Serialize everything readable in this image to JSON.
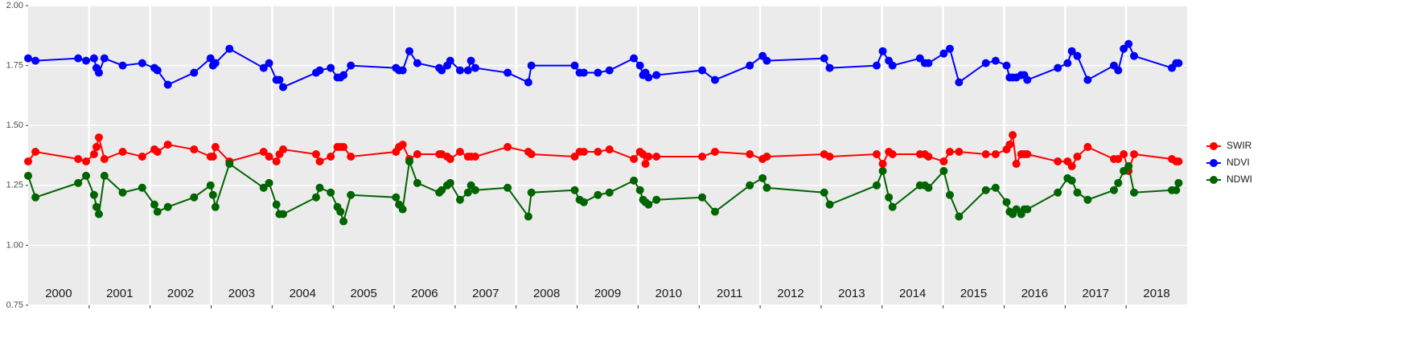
{
  "chart_data": {
    "type": "line",
    "x": [
      2000.0,
      2000.12,
      2000.82,
      2000.95,
      2001.08,
      2001.12,
      2001.16,
      2001.25,
      2001.55,
      2001.87,
      2002.07,
      2002.12,
      2002.29,
      2002.72,
      2002.99,
      2003.03,
      2003.07,
      2003.3,
      2003.86,
      2003.95,
      2004.07,
      2004.12,
      2004.18,
      2004.72,
      2004.78,
      2004.96,
      2005.07,
      2005.12,
      2005.17,
      2005.29,
      2006.03,
      2006.08,
      2006.14,
      2006.25,
      2006.38,
      2006.74,
      2006.78,
      2006.87,
      2006.92,
      2007.08,
      2007.21,
      2007.26,
      2007.33,
      2007.86,
      2008.2,
      2008.25,
      2008.96,
      2009.04,
      2009.11,
      2009.34,
      2009.53,
      2009.93,
      2010.03,
      2010.08,
      2010.12,
      2010.17,
      2010.3,
      2011.05,
      2011.26,
      2011.83,
      2012.04,
      2012.11,
      2013.05,
      2013.14,
      2013.91,
      2014.01,
      2014.11,
      2014.17,
      2014.62,
      2014.7,
      2014.76,
      2015.01,
      2015.11,
      2015.26,
      2015.7,
      2015.86,
      2016.04,
      2016.09,
      2016.14,
      2016.2,
      2016.28,
      2016.33,
      2016.38,
      2016.88,
      2017.04,
      2017.11,
      2017.2,
      2017.37,
      2017.8,
      2017.87,
      2017.96,
      2018.04,
      2018.13,
      2018.75,
      2018.82,
      2018.86
    ],
    "series": [
      {
        "name": "SWIR",
        "color": "#ff0000",
        "values": [
          1.35,
          1.39,
          1.36,
          1.35,
          1.38,
          1.41,
          1.45,
          1.36,
          1.39,
          1.37,
          1.4,
          1.39,
          1.42,
          1.4,
          1.37,
          1.37,
          1.41,
          1.35,
          1.39,
          1.37,
          1.35,
          1.38,
          1.4,
          1.38,
          1.35,
          1.37,
          1.41,
          1.41,
          1.41,
          1.37,
          1.39,
          1.41,
          1.42,
          1.36,
          1.38,
          1.38,
          1.38,
          1.37,
          1.36,
          1.39,
          1.37,
          1.37,
          1.37,
          1.41,
          1.39,
          1.38,
          1.37,
          1.39,
          1.39,
          1.39,
          1.4,
          1.36,
          1.39,
          1.38,
          1.34,
          1.37,
          1.37,
          1.37,
          1.39,
          1.38,
          1.36,
          1.37,
          1.38,
          1.37,
          1.38,
          1.34,
          1.39,
          1.38,
          1.38,
          1.38,
          1.37,
          1.35,
          1.39,
          1.39,
          1.38,
          1.38,
          1.4,
          1.42,
          1.46,
          1.34,
          1.38,
          1.38,
          1.38,
          1.35,
          1.35,
          1.33,
          1.37,
          1.41,
          1.36,
          1.36,
          1.38,
          1.31,
          1.38,
          1.36,
          1.35,
          1.35
        ]
      },
      {
        "name": "NDVI",
        "color": "#0000ff",
        "values": [
          1.78,
          1.77,
          1.78,
          1.77,
          1.78,
          1.74,
          1.72,
          1.78,
          1.75,
          1.76,
          1.74,
          1.73,
          1.67,
          1.72,
          1.78,
          1.75,
          1.76,
          1.82,
          1.74,
          1.76,
          1.69,
          1.69,
          1.66,
          1.72,
          1.73,
          1.74,
          1.7,
          1.7,
          1.71,
          1.75,
          1.74,
          1.73,
          1.73,
          1.81,
          1.76,
          1.74,
          1.73,
          1.75,
          1.77,
          1.73,
          1.73,
          1.77,
          1.74,
          1.72,
          1.68,
          1.75,
          1.75,
          1.72,
          1.72,
          1.72,
          1.73,
          1.78,
          1.75,
          1.71,
          1.72,
          1.7,
          1.71,
          1.73,
          1.69,
          1.75,
          1.79,
          1.77,
          1.78,
          1.74,
          1.75,
          1.81,
          1.77,
          1.75,
          1.78,
          1.76,
          1.76,
          1.8,
          1.82,
          1.68,
          1.76,
          1.77,
          1.75,
          1.7,
          1.7,
          1.7,
          1.71,
          1.71,
          1.69,
          1.74,
          1.76,
          1.81,
          1.79,
          1.69,
          1.75,
          1.73,
          1.82,
          1.84,
          1.79,
          1.74,
          1.76,
          1.76
        ]
      },
      {
        "name": "NDWI",
        "color": "#006400",
        "values": [
          1.29,
          1.2,
          1.26,
          1.29,
          1.21,
          1.16,
          1.13,
          1.29,
          1.22,
          1.24,
          1.17,
          1.14,
          1.16,
          1.2,
          1.25,
          1.21,
          1.16,
          1.34,
          1.24,
          1.26,
          1.17,
          1.13,
          1.13,
          1.2,
          1.24,
          1.22,
          1.16,
          1.14,
          1.1,
          1.21,
          1.2,
          1.17,
          1.15,
          1.35,
          1.26,
          1.22,
          1.23,
          1.25,
          1.26,
          1.19,
          1.22,
          1.25,
          1.23,
          1.24,
          1.12,
          1.22,
          1.23,
          1.19,
          1.18,
          1.21,
          1.22,
          1.27,
          1.23,
          1.19,
          1.18,
          1.17,
          1.19,
          1.2,
          1.14,
          1.25,
          1.28,
          1.24,
          1.22,
          1.17,
          1.25,
          1.31,
          1.2,
          1.16,
          1.25,
          1.25,
          1.24,
          1.31,
          1.21,
          1.12,
          1.23,
          1.24,
          1.18,
          1.14,
          1.13,
          1.15,
          1.13,
          1.15,
          1.15,
          1.22,
          1.28,
          1.27,
          1.22,
          1.19,
          1.23,
          1.26,
          1.31,
          1.33,
          1.22,
          1.23,
          1.23,
          1.26
        ]
      }
    ],
    "xlim": [
      2000,
      2019
    ],
    "xticks": [
      {
        "value": 2000.5,
        "label": "2000"
      },
      {
        "value": 2001.5,
        "label": "2001"
      },
      {
        "value": 2002.5,
        "label": "2002"
      },
      {
        "value": 2003.5,
        "label": "2003"
      },
      {
        "value": 2004.5,
        "label": "2004"
      },
      {
        "value": 2005.5,
        "label": "2005"
      },
      {
        "value": 2006.5,
        "label": "2006"
      },
      {
        "value": 2007.5,
        "label": "2007"
      },
      {
        "value": 2008.5,
        "label": "2008"
      },
      {
        "value": 2009.5,
        "label": "2009"
      },
      {
        "value": 2010.5,
        "label": "2010"
      },
      {
        "value": 2011.5,
        "label": "2011"
      },
      {
        "value": 2012.5,
        "label": "2012"
      },
      {
        "value": 2013.5,
        "label": "2013"
      },
      {
        "value": 2014.5,
        "label": "2014"
      },
      {
        "value": 2015.5,
        "label": "2015"
      },
      {
        "value": 2016.5,
        "label": "2016"
      },
      {
        "value": 2017.5,
        "label": "2017"
      },
      {
        "value": 2018.5,
        "label": "2018"
      }
    ],
    "xgrid": [
      2001,
      2002,
      2003,
      2004,
      2005,
      2006,
      2007,
      2008,
      2009,
      2010,
      2011,
      2012,
      2013,
      2014,
      2015,
      2016,
      2017,
      2018
    ],
    "ylim": [
      0.75,
      2.0
    ],
    "yticks": [
      {
        "value": 0.75,
        "label": "0.75"
      },
      {
        "value": 1.0,
        "label": "1.00"
      },
      {
        "value": 1.25,
        "label": "1.25"
      },
      {
        "value": 1.5,
        "label": "1.50"
      },
      {
        "value": 1.75,
        "label": "1.75"
      },
      {
        "value": 2.0,
        "label": "2.00"
      }
    ],
    "grid": true
  }
}
